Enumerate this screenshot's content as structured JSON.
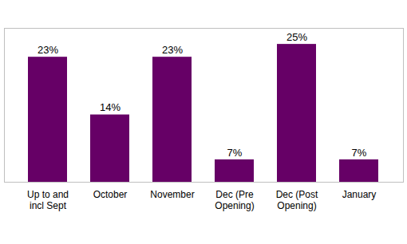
{
  "chart_data": {
    "type": "bar",
    "categories": [
      "Up to and\nincl Sept",
      "October",
      "November",
      "Dec (Pre\nOpening)",
      "Dec (Post\nOpening)",
      "January"
    ],
    "values": [
      23,
      14,
      23,
      7,
      25,
      7
    ],
    "value_labels": [
      "23%",
      "14%",
      "23%",
      "7%",
      "25%",
      "7%"
    ],
    "color": "#660066",
    "ylim": [
      3.5,
      27.5
    ],
    "data_labels": true,
    "tick_labels": "x",
    "grid": false
  }
}
